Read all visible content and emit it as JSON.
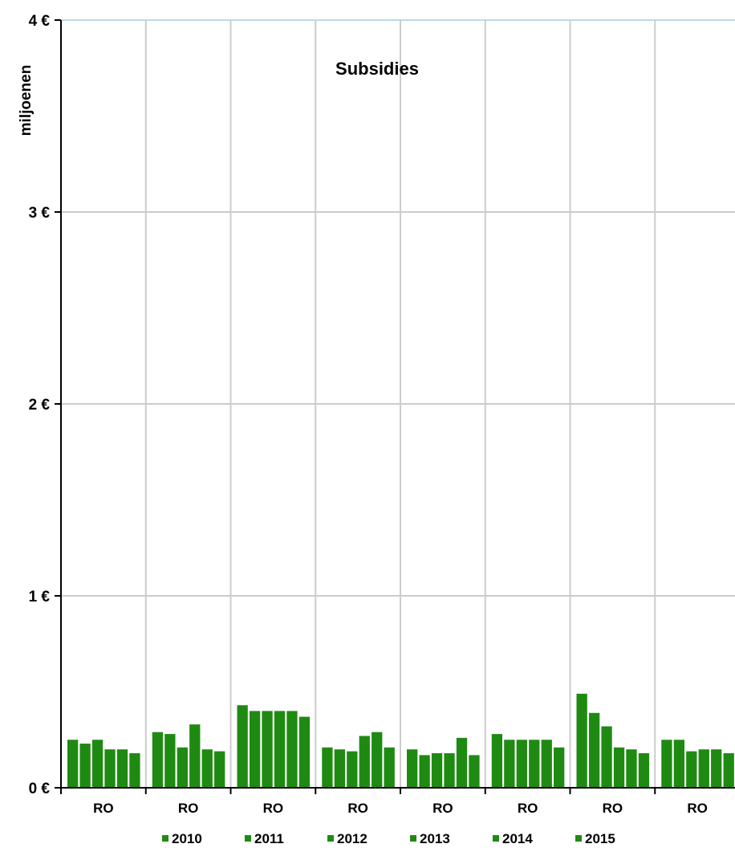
{
  "chart_data": {
    "type": "bar",
    "title": "Subsidies",
    "ylabel": "miljoenen",
    "xlabel": "",
    "categories": [
      "RO",
      "RO",
      "RO",
      "RO",
      "RO",
      "RO",
      "RO",
      "RO"
    ],
    "ylim": [
      0,
      4
    ],
    "yticks": [
      {
        "value": 0,
        "label": "0 €"
      },
      {
        "value": 1,
        "label": "1 €"
      },
      {
        "value": 2,
        "label": "2 €"
      },
      {
        "value": 3,
        "label": "3 €"
      },
      {
        "value": 4,
        "label": "4 €"
      }
    ],
    "grid": true,
    "legend_position": "bottom",
    "bar_color": "#1f8a12",
    "series": [
      {
        "name": "2010",
        "values": [
          0.25,
          0.29,
          0.43,
          0.21,
          0.2,
          0.28,
          0.49,
          0.25
        ]
      },
      {
        "name": "2011",
        "values": [
          0.23,
          0.28,
          0.4,
          0.2,
          0.17,
          0.25,
          0.39,
          0.25
        ]
      },
      {
        "name": "2012",
        "values": [
          0.25,
          0.21,
          0.4,
          0.19,
          0.18,
          0.25,
          0.32,
          0.19
        ]
      },
      {
        "name": "2013",
        "values": [
          0.2,
          0.33,
          0.4,
          0.27,
          0.18,
          0.25,
          0.21,
          0.2
        ]
      },
      {
        "name": "2014",
        "values": [
          0.2,
          0.2,
          0.4,
          0.29,
          0.26,
          0.25,
          0.2,
          0.2
        ]
      },
      {
        "name": "2015",
        "values": [
          0.18,
          0.19,
          0.37,
          0.21,
          0.17,
          0.21,
          0.18,
          0.18
        ]
      }
    ]
  }
}
